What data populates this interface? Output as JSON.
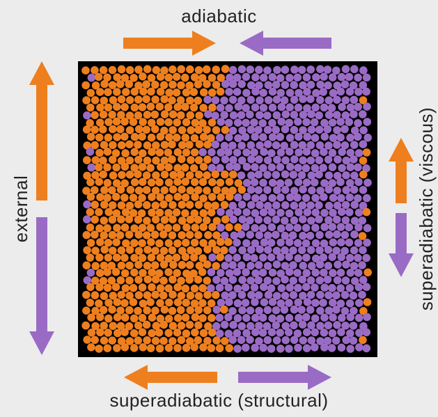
{
  "labels": {
    "top": "adiabatic",
    "bottom": "superadiabatic (structural)",
    "left": "external",
    "right": "superadiabatic (viscous)"
  },
  "colors": {
    "orange": "#ee7f1e",
    "purple": "#9a6bc5",
    "box_background": "#000000",
    "page_background": "#ececec"
  },
  "arrows": [
    {
      "side": "top",
      "color": "orange",
      "direction": "right"
    },
    {
      "side": "top",
      "color": "purple",
      "direction": "left"
    },
    {
      "side": "left",
      "color": "orange",
      "direction": "up"
    },
    {
      "side": "left",
      "color": "purple",
      "direction": "down"
    },
    {
      "side": "right",
      "color": "orange",
      "direction": "up"
    },
    {
      "side": "right",
      "color": "purple",
      "direction": "down"
    },
    {
      "side": "bottom",
      "color": "orange",
      "direction": "left"
    },
    {
      "side": "bottom",
      "color": "purple",
      "direction": "right"
    }
  ]
}
